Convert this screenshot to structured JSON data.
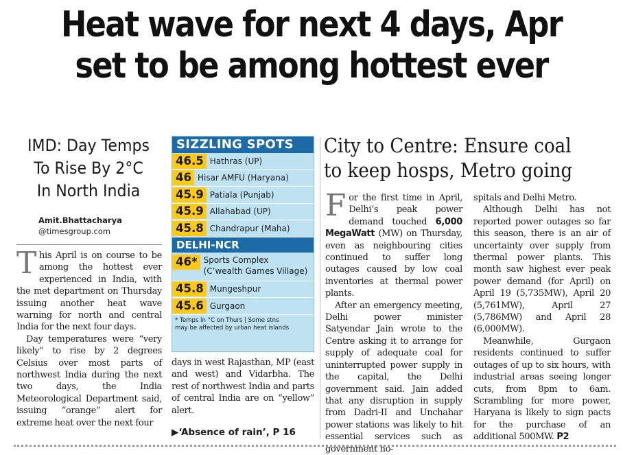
{
  "headline": {
    "line1": "Heat wave for next 4 days, Apr",
    "line2": "set to be among hottest ever"
  },
  "left_story": {
    "subhead": [
      "IMD: Day Temps",
      "To Rise By 2°C",
      "In North India"
    ],
    "byline_name": "Amit.Bhattacharya",
    "byline_email": "@timesgroup.com",
    "dropcap": "T",
    "para1": "his April is on course to be among the hottest ever experienced in India, with the met department on Thursday issuing another heat wave warning for north and central India for the next four days.",
    "para2": "Day temperatures were “very likely” to rise by 2 degrees Celsius over most parts of northwest India during the next two days, the India Meteorological Department said, issuing “orange” alert for extreme heat over the next four",
    "para3": "days in west Rajasthan, MP (east and west) and Vidarbha. The rest of northwest India and parts of central India are on “yellow” alert.",
    "crossref": "▶‘Absence of rain’, P 16"
  },
  "sizzling_spots": {
    "title": "SIZZLING SPOTS",
    "rows": [
      {
        "temp": "46.5",
        "place": "Hathras (UP)"
      },
      {
        "temp": "46",
        "place": "Hisar AMFU (Haryana)"
      },
      {
        "temp": "45.9",
        "place": "Patiala (Punjab)"
      },
      {
        "temp": "45.9",
        "place": "Allahabad (UP)"
      },
      {
        "temp": "45.8",
        "place": "Chandrapur (Maha)"
      }
    ],
    "delhi_title": "DELHI-NCR",
    "delhi_rows": [
      {
        "temp": "46*",
        "place_line1": "Sports Complex",
        "place_line2": "(C’wealth Games Village)"
      },
      {
        "temp": "45.8",
        "place": "Mungeshpur"
      },
      {
        "temp": "45.6",
        "place": "Gurgaon"
      }
    ],
    "note_line1": "* Temps in °C on Thurs | Some stns",
    "note_line2": "may be affected by urban heat islands"
  },
  "right_story": {
    "headline_line1": "City to Centre: Ensure coal",
    "headline_line2": "to keep hosps, Metro going",
    "dropcap": "F",
    "para1_a": "or the first time in April, Delhi’s peak power demand touched ",
    "para1_bold": "6,000 MegaWatt",
    "para1_b": " (MW) on Thursday, even as neighbouring cities continued to suffer long outages caused by low coal inventories at thermal power plants.",
    "para2": "After an emergency meeting, Delhi power minister Satyendar Jain wrote to the Centre asking it to arrange for supply of adequate coal for uninterrupted power supply in the capital, the Delhi government said. Jain added that any disruption in supply from Dadri-II and Unchahar power stations was likely to hit essential services such as government ho-",
    "para3": "spitals and Delhi Metro.",
    "para4": "Although Delhi has not reported power outages so far this season, there is an air of uncertainty over supply from thermal power plants. This month saw highest ever peak power demand (for April) on April 19 (5,735MW), April 20 (5,761MW), April 27 (5,786MW) and April 28 (6,000MW).",
    "para5": "Meanwhile, Gurgaon residents continued to suffer outages of up to six hours, with industrial areas seeing longer cuts, from 8pm to 6am. Scrambling for more power, Haryana is likely to sign pacts for the purchase of an additional 500MW.",
    "page_ref": "P2"
  }
}
